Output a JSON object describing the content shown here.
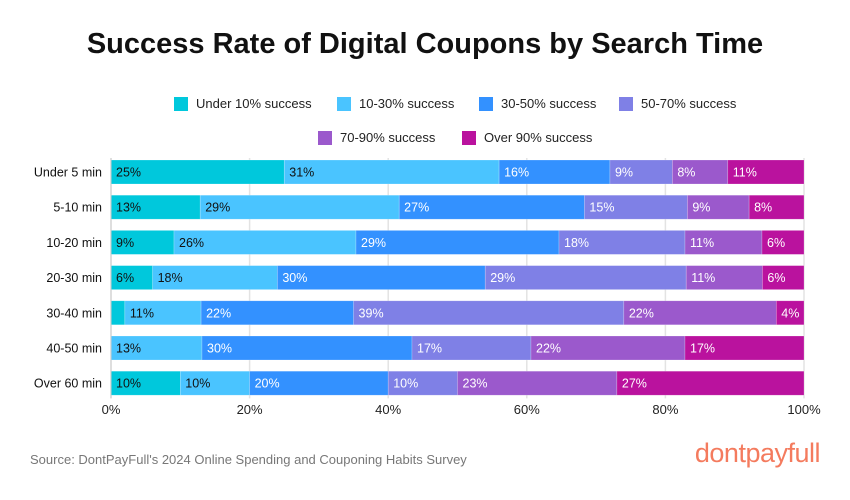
{
  "chart_data": {
    "type": "bar",
    "orientation": "horizontal",
    "stacked": true,
    "title": "Success Rate of Digital Coupons by Search Time",
    "categories": [
      "Under 5 min",
      "5-10 min",
      "10-20 min",
      "20-30 min",
      "30-40 min",
      "40-50 min",
      "Over 60 min"
    ],
    "series": [
      {
        "name": "Under 10% success",
        "color": "#00C8DC",
        "label_color": "#111111",
        "values": [
          25,
          13,
          9,
          6,
          2,
          0,
          10
        ],
        "labels": [
          "25%",
          "13%",
          "9%",
          "6%",
          "",
          "",
          "10%"
        ]
      },
      {
        "name": "10-30% success",
        "color": "#4AC4FF",
        "label_color": "#111111",
        "values": [
          31,
          29,
          26,
          18,
          11,
          13,
          10
        ],
        "labels": [
          "31%",
          "29%",
          "26%",
          "18%",
          "11%",
          "13%",
          "10%"
        ]
      },
      {
        "name": "30-50% success",
        "color": "#3391FF",
        "label_color": "#ffffff",
        "values": [
          16,
          27,
          29,
          30,
          22,
          30,
          20
        ],
        "labels": [
          "16%",
          "27%",
          "29%",
          "30%",
          "22%",
          "30%",
          "20%"
        ]
      },
      {
        "name": "50-70% success",
        "color": "#7F80E6",
        "label_color": "#ffffff",
        "values": [
          9,
          15,
          18,
          29,
          39,
          17,
          10
        ],
        "labels": [
          "9%",
          "15%",
          "18%",
          "29%",
          "39%",
          "17%",
          "10%"
        ]
      },
      {
        "name": "70-90% success",
        "color": "#9B59CC",
        "label_color": "#ffffff",
        "values": [
          8,
          9,
          11,
          11,
          22,
          22,
          23
        ],
        "labels": [
          "8%",
          "9%",
          "11%",
          "11%",
          "22%",
          "22%",
          "23%"
        ]
      },
      {
        "name": "Over 90% success",
        "color": "#BA129E",
        "label_color": "#ffffff",
        "values": [
          11,
          8,
          6,
          6,
          4,
          17,
          27
        ],
        "labels": [
          "11%",
          "8%",
          "6%",
          "6%",
          "4%",
          "17%",
          "27%"
        ]
      }
    ],
    "xlim": [
      0,
      100
    ],
    "xticks": [
      "0%",
      "20%",
      "40%",
      "60%",
      "80%",
      "100%"
    ],
    "grid": true,
    "legend": "top"
  },
  "source": "Source: DontPayFull's 2024 Online Spending and Couponing Habits Survey",
  "logo": "dontpayfull"
}
